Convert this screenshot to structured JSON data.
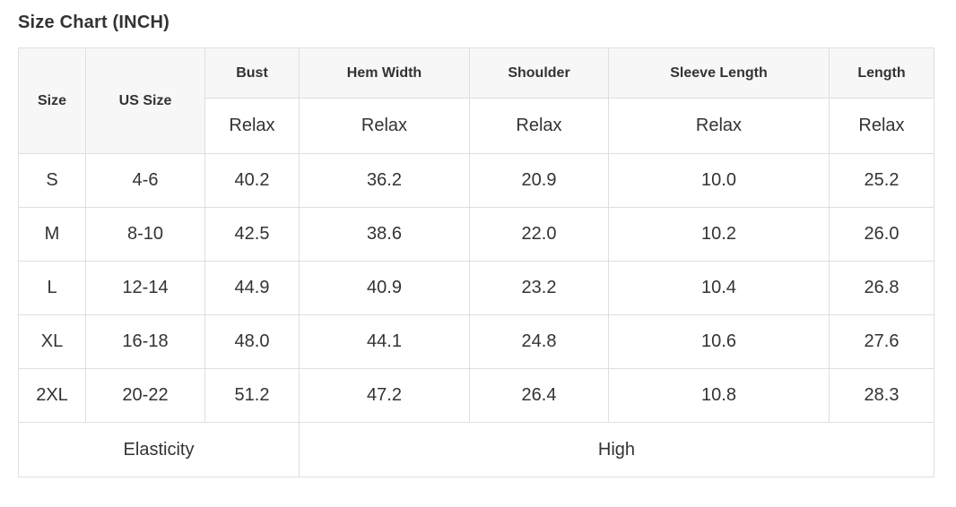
{
  "title": "Size Chart (INCH)",
  "table": {
    "corner_header": "Size",
    "us_size_header": "US Size",
    "measure_columns": [
      {
        "label": "Bust",
        "fit": "Relax"
      },
      {
        "label": "Hem Width",
        "fit": "Relax"
      },
      {
        "label": "Shoulder",
        "fit": "Relax"
      },
      {
        "label": "Sleeve Length",
        "fit": "Relax"
      },
      {
        "label": "Length",
        "fit": "Relax"
      }
    ],
    "rows": [
      {
        "size": "S",
        "us_size": "4-6",
        "values": [
          "40.2",
          "36.2",
          "20.9",
          "10.0",
          "25.2"
        ]
      },
      {
        "size": "M",
        "us_size": "8-10",
        "values": [
          "42.5",
          "38.6",
          "22.0",
          "10.2",
          "26.0"
        ]
      },
      {
        "size": "L",
        "us_size": "12-14",
        "values": [
          "44.9",
          "40.9",
          "23.2",
          "10.4",
          "26.8"
        ]
      },
      {
        "size": "XL",
        "us_size": "16-18",
        "values": [
          "48.0",
          "44.1",
          "24.8",
          "10.6",
          "27.6"
        ]
      },
      {
        "size": "2XL",
        "us_size": "20-22",
        "values": [
          "51.2",
          "47.2",
          "26.4",
          "10.8",
          "28.3"
        ]
      }
    ],
    "footer": {
      "label": "Elasticity",
      "value": "High"
    }
  },
  "colors": {
    "dark_header_bg": "#494949",
    "dark_header_text": "#ffffff",
    "light_header_bg": "#f7f7f7",
    "border": "#dfdfdf",
    "text": "#333333"
  },
  "chart_data": {
    "type": "table",
    "title": "Size Chart (INCH)",
    "unit": "inch",
    "columns": [
      "Size",
      "US Size",
      "Bust (Relax)",
      "Hem Width (Relax)",
      "Shoulder (Relax)",
      "Sleeve Length (Relax)",
      "Length (Relax)"
    ],
    "rows": [
      [
        "S",
        "4-6",
        40.2,
        36.2,
        20.9,
        10.0,
        25.2
      ],
      [
        "M",
        "8-10",
        42.5,
        38.6,
        22.0,
        10.2,
        26.0
      ],
      [
        "L",
        "12-14",
        44.9,
        40.9,
        23.2,
        10.4,
        26.8
      ],
      [
        "XL",
        "16-18",
        48.0,
        44.1,
        24.8,
        10.6,
        27.6
      ],
      [
        "2XL",
        "20-22",
        51.2,
        47.2,
        26.4,
        10.8,
        28.3
      ]
    ],
    "footer_row": {
      "label": "Elasticity",
      "value": "High",
      "value_span": "all measurement columns"
    },
    "layout": {
      "grid": true,
      "header_rows": 2,
      "merged_cells": [
        "Size rowspan 2",
        "US Size rowspan 2",
        "Elasticity colspan 3",
        "High colspan 4"
      ]
    }
  }
}
